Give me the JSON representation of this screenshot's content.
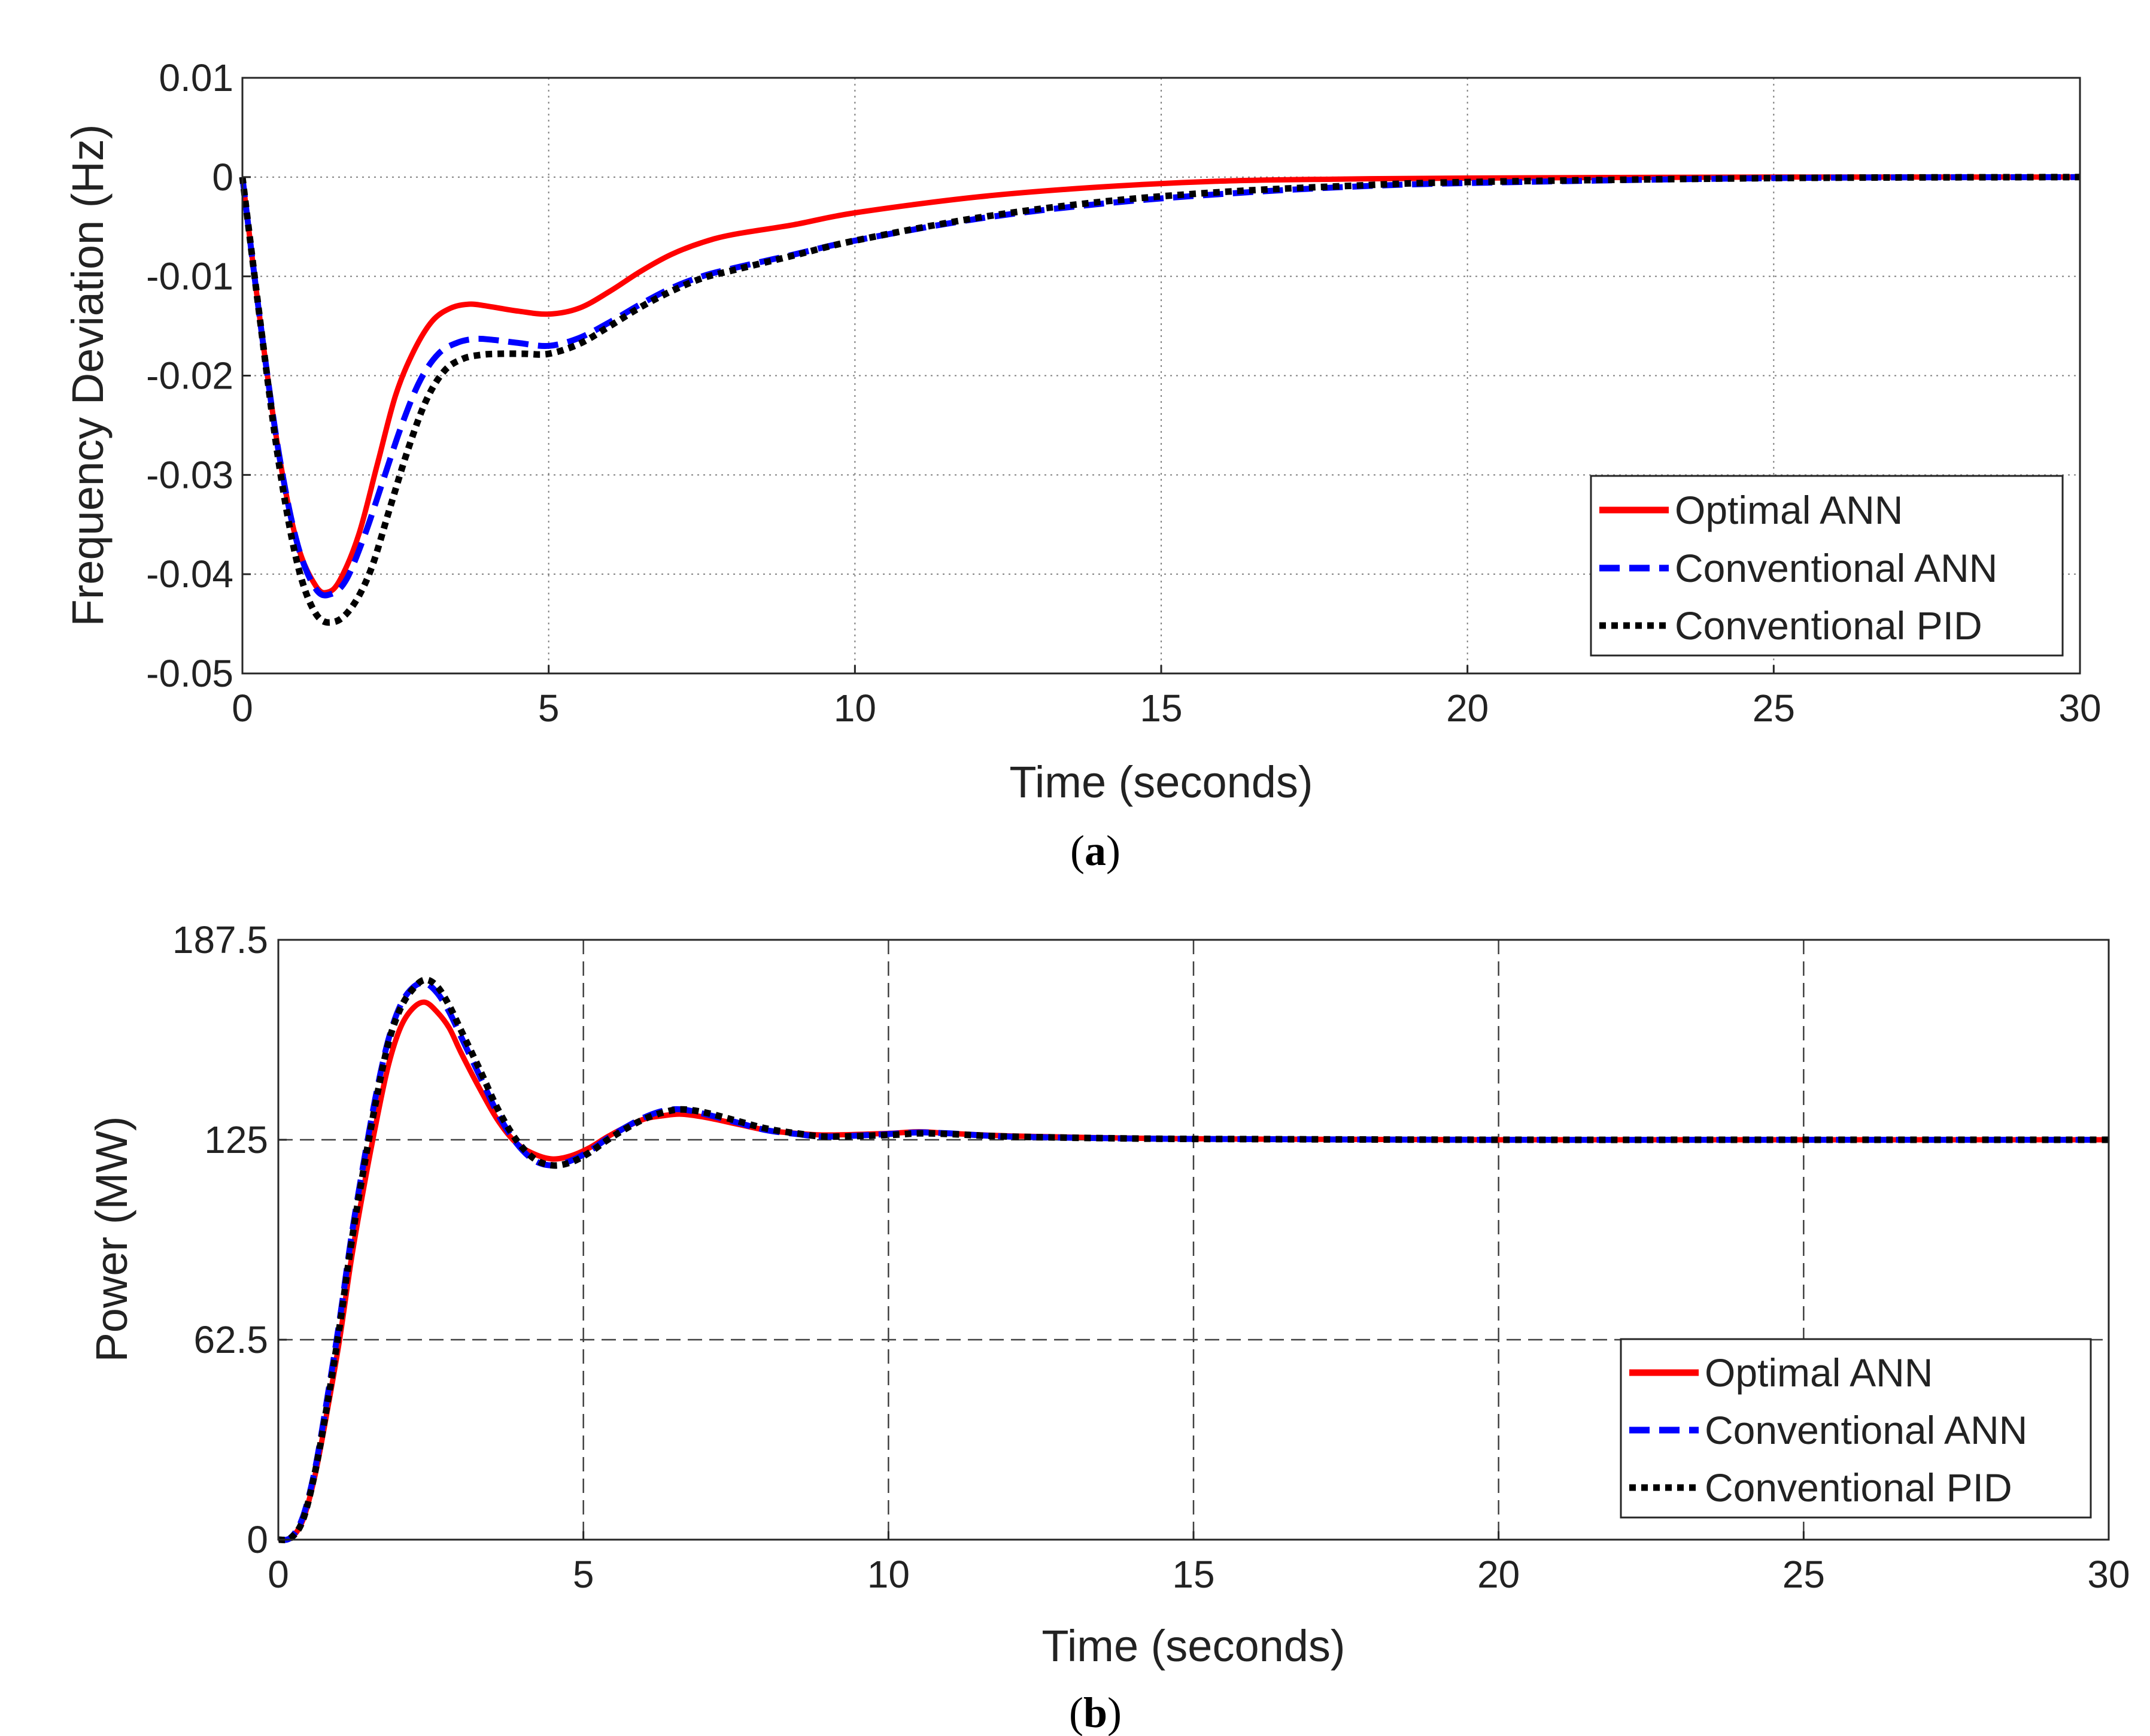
{
  "chart_data": [
    {
      "type": "line",
      "id": "a",
      "caption": {
        "open": "(",
        "letter": "a",
        "close": ")"
      },
      "xlabel": "Time (seconds)",
      "ylabel": "Frequency Deviation (Hz)",
      "xlim": [
        0,
        30
      ],
      "ylim": [
        -0.05,
        0.01
      ],
      "xticks": [
        0,
        5,
        10,
        15,
        20,
        25,
        30
      ],
      "xtick_labels": [
        "0",
        "5",
        "10",
        "15",
        "20",
        "25",
        "30"
      ],
      "yticks": [
        0.01,
        0,
        -0.01,
        -0.02,
        -0.03,
        -0.04,
        -0.05
      ],
      "ytick_labels": [
        "0.01",
        "0",
        "-0.01",
        "-0.02",
        "-0.03",
        "-0.04",
        "-0.05"
      ],
      "grid": "dotted",
      "legend_position": "bottom-right",
      "series": [
        {
          "name": "Optimal ANN",
          "color": "#ff0000",
          "style": "solid",
          "x": [
            0,
            0.3,
            0.6,
            0.9,
            1.2,
            1.4,
            1.6,
            1.9,
            2.2,
            2.5,
            2.8,
            3.1,
            3.4,
            3.7,
            4.0,
            4.5,
            5.0,
            5.5,
            6.0,
            6.5,
            7.0,
            7.5,
            8.0,
            9.0,
            10.0,
            12.0,
            14.0,
            16.0,
            18.0,
            20.0,
            25.0,
            30.0
          ],
          "y": [
            0,
            -0.015,
            -0.028,
            -0.037,
            -0.0412,
            -0.0418,
            -0.0405,
            -0.036,
            -0.029,
            -0.022,
            -0.0175,
            -0.0145,
            -0.0132,
            -0.0128,
            -0.013,
            -0.0135,
            -0.0138,
            -0.0132,
            -0.0115,
            -0.0095,
            -0.0078,
            -0.0066,
            -0.0058,
            -0.0048,
            -0.0036,
            -0.002,
            -0.001,
            -0.0004,
            -0.0002,
            -0.0001,
            0,
            0
          ]
        },
        {
          "name": "Conventional ANN",
          "color": "#0000ff",
          "style": "dashed",
          "x": [
            0,
            0.3,
            0.6,
            0.9,
            1.2,
            1.45,
            1.7,
            2.0,
            2.3,
            2.6,
            2.9,
            3.2,
            3.5,
            3.8,
            4.1,
            4.5,
            5.0,
            5.5,
            6.0,
            6.5,
            7.0,
            7.5,
            8.0,
            9.0,
            10.0,
            12.0,
            14.0,
            16.0,
            18.0,
            20.0,
            25.0,
            30.0
          ],
          "y": [
            0,
            -0.015,
            -0.028,
            -0.037,
            -0.0415,
            -0.042,
            -0.0405,
            -0.036,
            -0.0305,
            -0.025,
            -0.0205,
            -0.0178,
            -0.0167,
            -0.0163,
            -0.0164,
            -0.0167,
            -0.017,
            -0.0162,
            -0.0146,
            -0.0128,
            -0.0112,
            -0.01,
            -0.0092,
            -0.0078,
            -0.0064,
            -0.0042,
            -0.0027,
            -0.0017,
            -0.001,
            -0.0006,
            -0.0001,
            0
          ]
        },
        {
          "name": "Conventional PID",
          "color": "#000000",
          "style": "dotted",
          "x": [
            0,
            0.3,
            0.6,
            0.9,
            1.2,
            1.5,
            1.8,
            2.1,
            2.4,
            2.7,
            3.0,
            3.3,
            3.6,
            3.9,
            4.2,
            4.6,
            5.0,
            5.5,
            6.0,
            6.5,
            7.0,
            7.5,
            8.0,
            9.0,
            10.0,
            12.0,
            14.0,
            16.0,
            18.0,
            20.0,
            25.0,
            30.0
          ],
          "y": [
            0,
            -0.015,
            -0.029,
            -0.039,
            -0.044,
            -0.0448,
            -0.0432,
            -0.0395,
            -0.0335,
            -0.0275,
            -0.0225,
            -0.0195,
            -0.0183,
            -0.0179,
            -0.0178,
            -0.0178,
            -0.0178,
            -0.0168,
            -0.015,
            -0.0131,
            -0.0115,
            -0.0102,
            -0.0094,
            -0.0079,
            -0.0064,
            -0.0041,
            -0.0025,
            -0.0015,
            -0.0009,
            -0.0005,
            -0.0001,
            0
          ]
        }
      ]
    },
    {
      "type": "line",
      "id": "b",
      "caption": {
        "open": "(",
        "letter": "b",
        "close": ")"
      },
      "xlabel": "Time (seconds)",
      "ylabel": "Power (MW)",
      "xlim": [
        0,
        30
      ],
      "ylim": [
        0,
        187.5
      ],
      "xticks": [
        0,
        5,
        10,
        15,
        20,
        25,
        30
      ],
      "xtick_labels": [
        "0",
        "5",
        "10",
        "15",
        "20",
        "25",
        "30"
      ],
      "yticks": [
        187.5,
        125,
        62.5,
        0
      ],
      "ytick_labels": [
        "187.5",
        "125",
        "62.5",
        "0"
      ],
      "grid": "dashed",
      "legend_position": "bottom-right",
      "series": [
        {
          "name": "Optimal ANN",
          "color": "#ff0000",
          "style": "solid",
          "x": [
            0,
            0.2,
            0.4,
            0.6,
            0.8,
            1.0,
            1.2,
            1.4,
            1.6,
            1.8,
            2.0,
            2.2,
            2.4,
            2.6,
            2.8,
            3.0,
            3.3,
            3.6,
            3.9,
            4.2,
            4.5,
            4.8,
            5.1,
            5.4,
            5.7,
            6.0,
            6.3,
            6.6,
            7.0,
            7.5,
            8.0,
            8.5,
            9.0,
            10.0,
            10.5,
            11.0,
            12.0,
            14.0,
            16.0,
            20.0,
            25.0,
            30.0
          ],
          "y": [
            0,
            0.5,
            6,
            20,
            40,
            62,
            88,
            110,
            130,
            148,
            160,
            166,
            168,
            165,
            160,
            152,
            141,
            131,
            124,
            120.5,
            119,
            120,
            122.5,
            126,
            129,
            131.5,
            132.5,
            133,
            132,
            130,
            128,
            127,
            126.5,
            127,
            127.5,
            127,
            126.2,
            125.5,
            125.2,
            125,
            125,
            125
          ]
        },
        {
          "name": "Conventional ANN",
          "color": "#0000ff",
          "style": "dashed",
          "x": [
            0,
            0.2,
            0.4,
            0.6,
            0.8,
            1.0,
            1.2,
            1.4,
            1.6,
            1.8,
            2.0,
            2.2,
            2.4,
            2.6,
            2.8,
            3.0,
            3.3,
            3.6,
            3.9,
            4.2,
            4.5,
            4.8,
            5.1,
            5.4,
            5.7,
            6.0,
            6.3,
            6.6,
            7.0,
            7.5,
            8.0,
            8.5,
            9.0,
            10.0,
            10.5,
            11.0,
            12.0,
            14.0,
            16.0,
            20.0,
            25.0,
            30.0
          ],
          "y": [
            0,
            0.6,
            7,
            22,
            44,
            68,
            95,
            118,
            139,
            156,
            167,
            172.5,
            174,
            171,
            165,
            157,
            145,
            133,
            124,
            118.5,
            117,
            118.5,
            121.5,
            125.5,
            129,
            132,
            134,
            134.5,
            133,
            130.5,
            128,
            126.8,
            126,
            126.8,
            127.3,
            127,
            126,
            125.4,
            125.2,
            125,
            125,
            125
          ]
        },
        {
          "name": "Conventional PID",
          "color": "#000000",
          "style": "dotted",
          "x": [
            0,
            0.2,
            0.4,
            0.6,
            0.8,
            1.0,
            1.2,
            1.4,
            1.6,
            1.8,
            2.0,
            2.2,
            2.4,
            2.6,
            2.8,
            3.0,
            3.3,
            3.6,
            3.9,
            4.2,
            4.5,
            4.8,
            5.1,
            5.4,
            5.7,
            6.0,
            6.3,
            6.6,
            7.0,
            7.5,
            8.0,
            8.5,
            9.0,
            10.0,
            10.5,
            11.0,
            12.0,
            14.0,
            16.0,
            20.0,
            25.0,
            30.0
          ],
          "y": [
            0,
            0.5,
            6,
            21,
            42,
            66,
            93,
            116,
            137,
            155,
            166,
            172,
            175,
            173,
            167,
            159,
            147,
            134.5,
            125,
            119,
            117,
            118,
            121,
            125,
            128.5,
            131.5,
            133.5,
            134.5,
            133.5,
            131,
            128.5,
            127,
            126,
            126.5,
            127,
            126.8,
            126,
            125.4,
            125.2,
            125,
            125,
            125
          ]
        }
      ]
    }
  ]
}
